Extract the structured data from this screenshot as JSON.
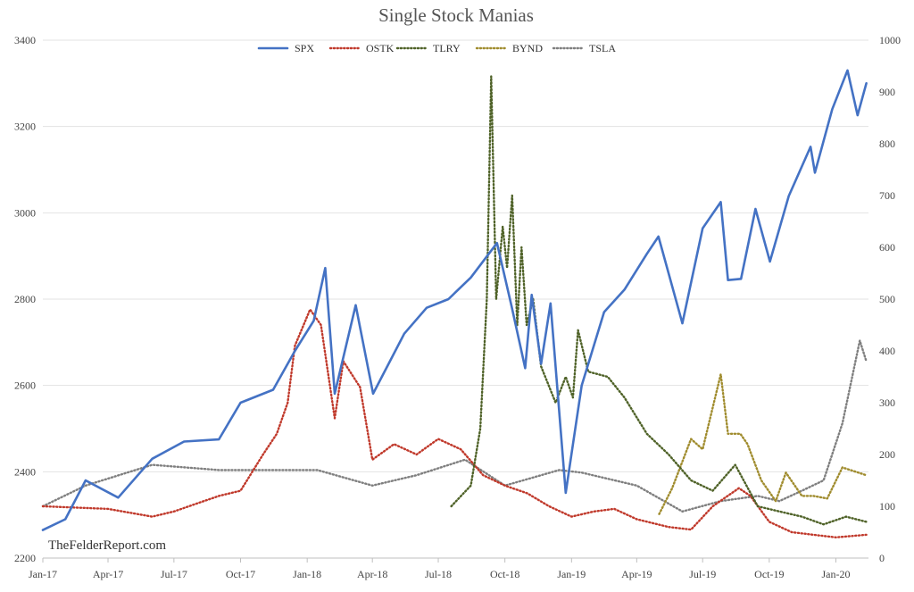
{
  "chart_data": {
    "type": "line",
    "title": "Single Stock Manias",
    "watermark": "TheFelderReport.com",
    "x_labels": [
      "Jan-17",
      "Apr-17",
      "Jul-17",
      "Oct-17",
      "Jan-18",
      "Apr-18",
      "Jul-18",
      "Oct-18",
      "Jan-19",
      "Apr-19",
      "Jul-19",
      "Oct-19",
      "Jan-20"
    ],
    "x_range": [
      "2017-01-01",
      "2020-02-15"
    ],
    "y_left": {
      "ylim": [
        2200,
        3400
      ],
      "ticks": [
        2200,
        2400,
        2600,
        2800,
        3000,
        3200,
        3400
      ]
    },
    "y_right": {
      "ylim": [
        0,
        1000
      ],
      "ticks": [
        0,
        100,
        200,
        300,
        400,
        500,
        600,
        700,
        800,
        900,
        1000
      ]
    },
    "grid": true,
    "legend_position": "top",
    "series": [
      {
        "name": "SPX",
        "axis": "left",
        "style": "solid",
        "color": "#4472c4",
        "points": [
          [
            "2017-01-01",
            2265
          ],
          [
            "2017-02-01",
            2290
          ],
          [
            "2017-03-01",
            2380
          ],
          [
            "2017-04-15",
            2340
          ],
          [
            "2017-06-01",
            2430
          ],
          [
            "2017-07-15",
            2470
          ],
          [
            "2017-09-01",
            2475
          ],
          [
            "2017-10-01",
            2560
          ],
          [
            "2017-11-15",
            2590
          ],
          [
            "2017-12-15",
            2680
          ],
          [
            "2018-01-10",
            2750
          ],
          [
            "2018-01-26",
            2872
          ],
          [
            "2018-02-08",
            2581
          ],
          [
            "2018-03-09",
            2786
          ],
          [
            "2018-04-02",
            2581
          ],
          [
            "2018-05-15",
            2720
          ],
          [
            "2018-06-15",
            2780
          ],
          [
            "2018-07-15",
            2800
          ],
          [
            "2018-08-15",
            2850
          ],
          [
            "2018-09-20",
            2930
          ],
          [
            "2018-10-10",
            2785
          ],
          [
            "2018-10-29",
            2640
          ],
          [
            "2018-11-07",
            2810
          ],
          [
            "2018-11-20",
            2650
          ],
          [
            "2018-12-03",
            2790
          ],
          [
            "2018-12-24",
            2351
          ],
          [
            "2019-01-15",
            2600
          ],
          [
            "2019-02-15",
            2770
          ],
          [
            "2019-03-15",
            2822
          ],
          [
            "2019-04-15",
            2905
          ],
          [
            "2019-05-01",
            2945
          ],
          [
            "2019-06-03",
            2744
          ],
          [
            "2019-07-01",
            2964
          ],
          [
            "2019-07-26",
            3025
          ],
          [
            "2019-08-05",
            2844
          ],
          [
            "2019-08-23",
            2847
          ],
          [
            "2019-09-12",
            3009
          ],
          [
            "2019-10-02",
            2887
          ],
          [
            "2019-10-28",
            3039
          ],
          [
            "2019-11-27",
            3153
          ],
          [
            "2019-12-03",
            3093
          ],
          [
            "2019-12-27",
            3240
          ],
          [
            "2020-01-17",
            3330
          ],
          [
            "2020-01-31",
            3226
          ],
          [
            "2020-02-12",
            3300
          ]
        ]
      },
      {
        "name": "OSTK",
        "axis": "right",
        "style": "dotted",
        "color": "#c0392b",
        "points": [
          [
            "2017-01-01",
            100
          ],
          [
            "2017-04-01",
            95
          ],
          [
            "2017-06-01",
            80
          ],
          [
            "2017-07-01",
            90
          ],
          [
            "2017-09-01",
            120
          ],
          [
            "2017-10-01",
            130
          ],
          [
            "2017-11-01",
            200
          ],
          [
            "2017-11-20",
            240
          ],
          [
            "2017-12-05",
            300
          ],
          [
            "2017-12-15",
            410
          ],
          [
            "2018-01-05",
            480
          ],
          [
            "2018-01-20",
            450
          ],
          [
            "2018-02-08",
            270
          ],
          [
            "2018-02-20",
            380
          ],
          [
            "2018-03-15",
            330
          ],
          [
            "2018-04-01",
            190
          ],
          [
            "2018-05-01",
            220
          ],
          [
            "2018-06-01",
            200
          ],
          [
            "2018-07-01",
            230
          ],
          [
            "2018-08-01",
            210
          ],
          [
            "2018-09-01",
            160
          ],
          [
            "2018-10-01",
            140
          ],
          [
            "2018-11-01",
            125
          ],
          [
            "2018-12-01",
            100
          ],
          [
            "2019-01-01",
            80
          ],
          [
            "2019-02-01",
            90
          ],
          [
            "2019-03-01",
            95
          ],
          [
            "2019-04-01",
            75
          ],
          [
            "2019-05-15",
            60
          ],
          [
            "2019-06-15",
            55
          ],
          [
            "2019-07-15",
            100
          ],
          [
            "2019-08-20",
            135
          ],
          [
            "2019-09-05",
            120
          ],
          [
            "2019-10-01",
            70
          ],
          [
            "2019-11-01",
            50
          ],
          [
            "2019-12-01",
            45
          ],
          [
            "2020-01-01",
            40
          ],
          [
            "2020-02-12",
            45
          ]
        ]
      },
      {
        "name": "TLRY",
        "axis": "right",
        "style": "dotted",
        "color": "#4f6228",
        "points": [
          [
            "2018-07-19",
            100
          ],
          [
            "2018-08-15",
            140
          ],
          [
            "2018-08-28",
            250
          ],
          [
            "2018-09-06",
            500
          ],
          [
            "2018-09-12",
            930
          ],
          [
            "2018-09-19",
            500
          ],
          [
            "2018-09-28",
            640
          ],
          [
            "2018-10-04",
            560
          ],
          [
            "2018-10-11",
            700
          ],
          [
            "2018-10-18",
            450
          ],
          [
            "2018-10-24",
            600
          ],
          [
            "2018-10-31",
            450
          ],
          [
            "2018-11-09",
            500
          ],
          [
            "2018-11-20",
            370
          ],
          [
            "2018-12-10",
            300
          ],
          [
            "2018-12-24",
            350
          ],
          [
            "2019-01-03",
            310
          ],
          [
            "2019-01-10",
            440
          ],
          [
            "2019-01-24",
            360
          ],
          [
            "2019-02-20",
            350
          ],
          [
            "2019-03-15",
            310
          ],
          [
            "2019-04-15",
            240
          ],
          [
            "2019-05-15",
            200
          ],
          [
            "2019-06-15",
            150
          ],
          [
            "2019-07-15",
            130
          ],
          [
            "2019-08-15",
            180
          ],
          [
            "2019-09-15",
            100
          ],
          [
            "2019-10-15",
            90
          ],
          [
            "2019-11-15",
            80
          ],
          [
            "2019-12-15",
            65
          ],
          [
            "2020-01-15",
            80
          ],
          [
            "2020-02-12",
            70
          ]
        ]
      },
      {
        "name": "BYND",
        "axis": "right",
        "style": "dotted",
        "color": "#a08c2e",
        "points": [
          [
            "2019-05-02",
            85
          ],
          [
            "2019-05-20",
            135
          ],
          [
            "2019-06-15",
            230
          ],
          [
            "2019-07-01",
            210
          ],
          [
            "2019-07-26",
            355
          ],
          [
            "2019-08-05",
            240
          ],
          [
            "2019-08-22",
            240
          ],
          [
            "2019-09-01",
            220
          ],
          [
            "2019-09-20",
            150
          ],
          [
            "2019-10-10",
            110
          ],
          [
            "2019-10-24",
            165
          ],
          [
            "2019-11-15",
            120
          ],
          [
            "2019-12-01",
            120
          ],
          [
            "2019-12-20",
            115
          ],
          [
            "2020-01-10",
            175
          ],
          [
            "2020-02-12",
            160
          ]
        ]
      },
      {
        "name": "TSLA",
        "axis": "right",
        "style": "dotted",
        "color": "#7f7f7f",
        "points": [
          [
            "2017-01-01",
            100
          ],
          [
            "2017-03-01",
            140
          ],
          [
            "2017-06-01",
            180
          ],
          [
            "2017-09-01",
            170
          ],
          [
            "2017-11-01",
            170
          ],
          [
            "2018-01-15",
            170
          ],
          [
            "2018-04-01",
            140
          ],
          [
            "2018-06-01",
            160
          ],
          [
            "2018-08-07",
            190
          ],
          [
            "2018-10-01",
            140
          ],
          [
            "2018-12-15",
            170
          ],
          [
            "2019-01-15",
            165
          ],
          [
            "2019-04-01",
            140
          ],
          [
            "2019-06-03",
            90
          ],
          [
            "2019-07-26",
            110
          ],
          [
            "2019-09-15",
            120
          ],
          [
            "2019-10-15",
            110
          ],
          [
            "2019-11-15",
            130
          ],
          [
            "2019-12-15",
            150
          ],
          [
            "2020-01-10",
            260
          ],
          [
            "2020-02-03",
            420
          ],
          [
            "2020-02-12",
            380
          ]
        ]
      }
    ]
  }
}
